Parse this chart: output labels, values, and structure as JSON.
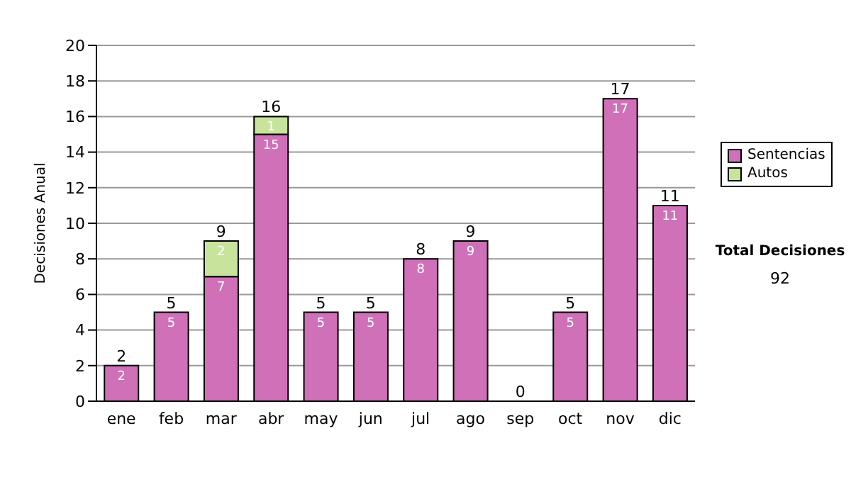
{
  "chart_data": {
    "type": "bar",
    "stacked": true,
    "categories": [
      "ene",
      "feb",
      "mar",
      "abr",
      "may",
      "jun",
      "jul",
      "ago",
      "sep",
      "oct",
      "nov",
      "dic"
    ],
    "ylabel": "Decisiones Anual",
    "ylim": [
      0,
      20
    ],
    "yticks": [
      0,
      2,
      4,
      6,
      8,
      10,
      12,
      14,
      16,
      18,
      20
    ],
    "grid": "y",
    "legend": "right",
    "series": [
      {
        "name": "Sentencias",
        "color": "#d070b8",
        "values": [
          2,
          5,
          7,
          15,
          5,
          5,
          8,
          9,
          0,
          5,
          17,
          11
        ],
        "value_labels": [
          "2",
          "5",
          "7",
          "15",
          "5",
          "5",
          "8",
          "9",
          null,
          "5",
          "17",
          "11"
        ]
      },
      {
        "name": "Autos",
        "color": "#c8e39c",
        "values": [
          0,
          0,
          2,
          1,
          0,
          0,
          0,
          0,
          0,
          0,
          0,
          0
        ],
        "value_labels": [
          null,
          null,
          "2",
          "1",
          null,
          null,
          null,
          null,
          null,
          null,
          null,
          null
        ]
      }
    ],
    "totals": [
      "2",
      "5",
      "9",
      "16",
      "5",
      "5",
      "8",
      "9",
      "0",
      "5",
      "17",
      "11"
    ],
    "annotations": [
      "Total Decisiones",
      "92"
    ]
  }
}
